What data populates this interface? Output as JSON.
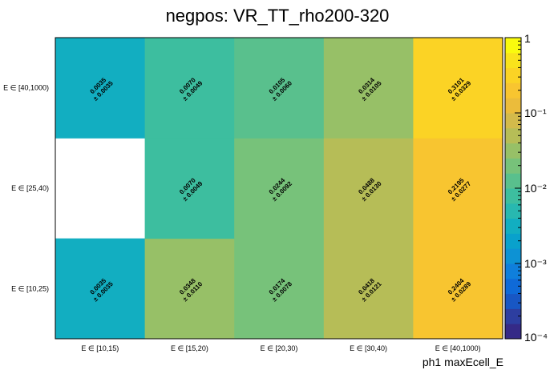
{
  "chart_data": {
    "type": "heatmap",
    "title": "negpos: VR_TT_rho200-320",
    "xlabel": "ph1 maxEcell_E",
    "ylabel": "",
    "x_categories": [
      "E ∈ [10,15)",
      "E ∈ [15,20)",
      "E ∈ [20,30)",
      "E ∈ [30,40)",
      "E ∈ [40,1000)"
    ],
    "y_categories": [
      "E ∈ [10,25)",
      "E ∈ [25,40)",
      "E ∈ [40,1000)"
    ],
    "cells": [
      {
        "x": 0,
        "y": 0,
        "value": 0.0035,
        "value_label": "0.0035",
        "error_label": "± 0.0035"
      },
      {
        "x": 1,
        "y": 0,
        "value": 0.0348,
        "value_label": "0.0348",
        "error_label": "± 0.0110"
      },
      {
        "x": 2,
        "y": 0,
        "value": 0.0174,
        "value_label": "0.0174",
        "error_label": "± 0.0078"
      },
      {
        "x": 3,
        "y": 0,
        "value": 0.0418,
        "value_label": "0.0418",
        "error_label": "± 0.0121"
      },
      {
        "x": 4,
        "y": 0,
        "value": 0.2404,
        "value_label": "0.2404",
        "error_label": "± 0.0289"
      },
      {
        "x": 1,
        "y": 1,
        "value": 0.007,
        "value_label": "0.0070",
        "error_label": "± 0.0049"
      },
      {
        "x": 2,
        "y": 1,
        "value": 0.0244,
        "value_label": "0.0244",
        "error_label": "± 0.0092"
      },
      {
        "x": 3,
        "y": 1,
        "value": 0.0488,
        "value_label": "0.0488",
        "error_label": "± 0.0130"
      },
      {
        "x": 4,
        "y": 1,
        "value": 0.2195,
        "value_label": "0.2195",
        "error_label": "± 0.0277"
      },
      {
        "x": 0,
        "y": 2,
        "value": 0.0035,
        "value_label": "0.0035",
        "error_label": "± 0.0035"
      },
      {
        "x": 1,
        "y": 2,
        "value": 0.007,
        "value_label": "0.0070",
        "error_label": "± 0.0049"
      },
      {
        "x": 2,
        "y": 2,
        "value": 0.0105,
        "value_label": "0.0105",
        "error_label": "± 0.0060"
      },
      {
        "x": 3,
        "y": 2,
        "value": 0.0314,
        "value_label": "0.0314",
        "error_label": "± 0.0105"
      },
      {
        "x": 4,
        "y": 2,
        "value": 0.3101,
        "value_label": "0.3101",
        "error_label": "± 0.0329"
      }
    ],
    "colorbar": {
      "scale": "log",
      "range": [
        0.0001,
        1
      ],
      "tick_labels": [
        "1",
        "10⁻¹",
        "10⁻²",
        "10⁻³",
        "10⁻⁴"
      ],
      "tick_values": [
        1,
        0.1,
        0.01,
        0.001,
        0.0001
      ]
    },
    "palette": [
      "#352a87",
      "#2d3ea0",
      "#1857c4",
      "#0f6ad8",
      "#0f7fdc",
      "#0d92d4",
      "#09a1cc",
      "#12aec1",
      "#28b8b0",
      "#3dbe9f",
      "#59c08d",
      "#77c27a",
      "#97c067",
      "#b6bd57",
      "#d3ba4b",
      "#ebbc3b",
      "#f8c530",
      "#fbd325",
      "#f9e31c",
      "#f9fb0e"
    ]
  }
}
